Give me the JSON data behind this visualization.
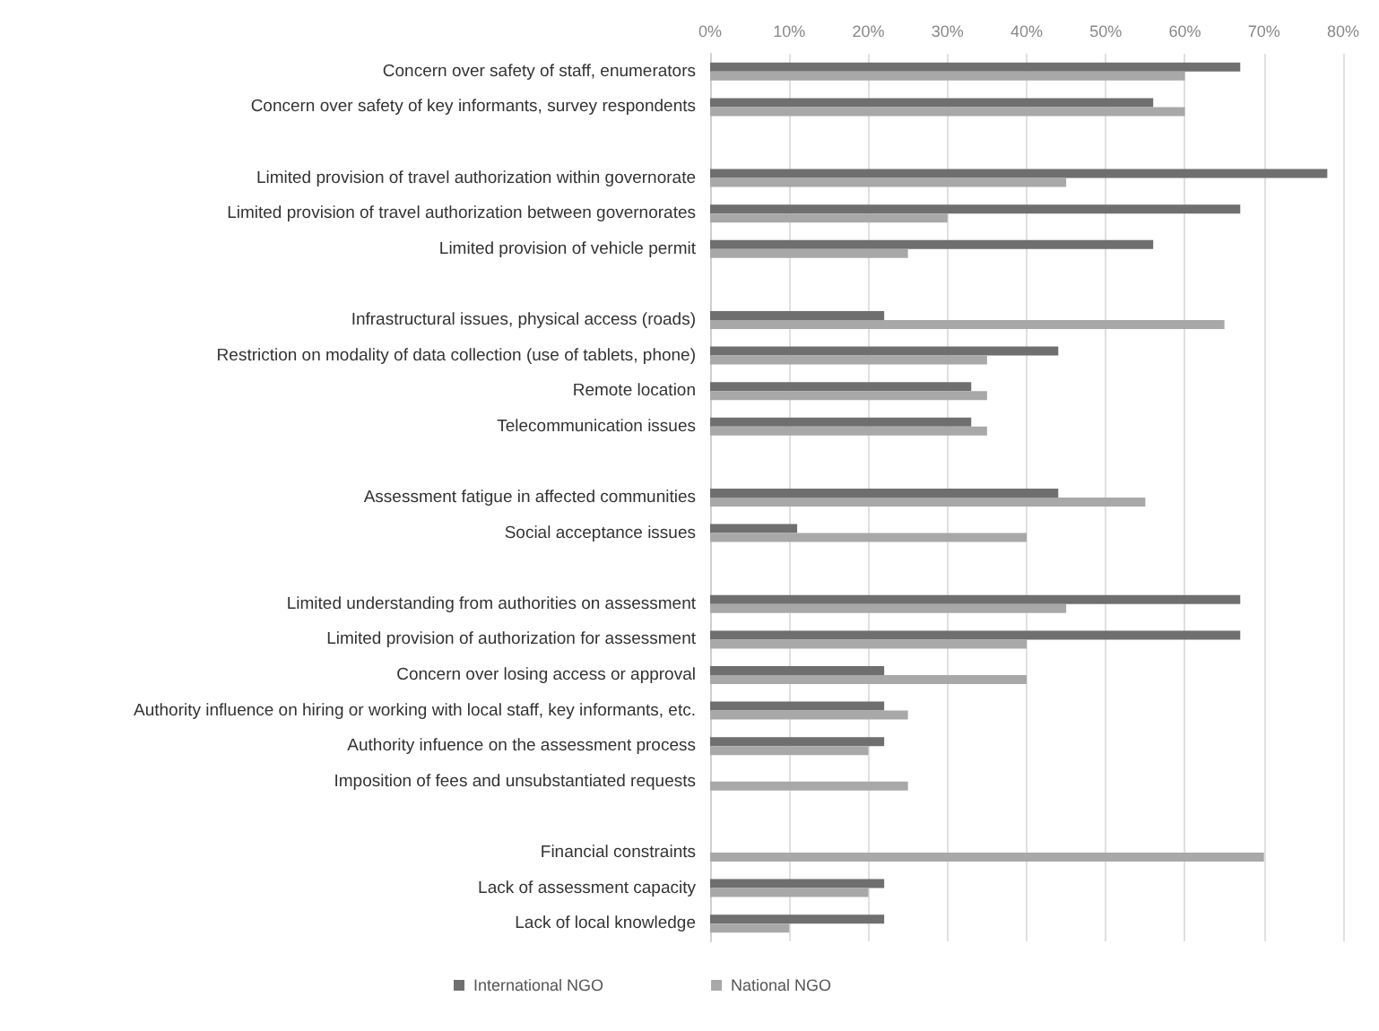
{
  "chart_data": {
    "type": "bar",
    "orientation": "horizontal",
    "categories": [
      "Concern over safety of staff, enumerators",
      "Concern over safety of key informants, survey respondents",
      null,
      "Limited provision of travel authorization within governorate",
      "Limited provision of travel authorization between governorates",
      "Limited provision of vehicle permit",
      null,
      "Infrastructural issues, physical access (roads)",
      "Restriction on modality of data collection (use of tablets, phone)",
      "Remote location",
      "Telecommunication issues",
      null,
      "Assessment fatigue in affected communities",
      "Social acceptance issues",
      null,
      "Limited understanding from authorities on assessment",
      "Limited provision of authorization for assessment",
      "Concern over losing access or approval",
      "Authority influence on hiring or working with local staff, key informants, etc.",
      "Authority infuence on the assessment process",
      "Imposition of fees and unsubstantiated requests",
      null,
      "Financial constraints",
      "Lack of assessment capacity",
      "Lack of local knowledge"
    ],
    "series": [
      {
        "name": "International NGO",
        "color": "#6f6f6f",
        "values": [
          67,
          56,
          null,
          78,
          67,
          56,
          null,
          22,
          44,
          33,
          33,
          null,
          44,
          11,
          null,
          67,
          67,
          22,
          22,
          22,
          0,
          null,
          0,
          22,
          22
        ]
      },
      {
        "name": "National NGO",
        "color": "#a8a8a8",
        "values": [
          60,
          60,
          null,
          45,
          30,
          25,
          null,
          65,
          35,
          35,
          35,
          null,
          55,
          40,
          null,
          45,
          40,
          40,
          25,
          20,
          25,
          null,
          70,
          20,
          10
        ]
      }
    ],
    "xlim": [
      0,
      80
    ],
    "xticks": [
      {
        "value": 0,
        "label": "0%"
      },
      {
        "value": 10,
        "label": "10%"
      },
      {
        "value": 20,
        "label": "20%"
      },
      {
        "value": 30,
        "label": "30%"
      },
      {
        "value": 40,
        "label": "40%"
      },
      {
        "value": 50,
        "label": "50%"
      },
      {
        "value": 60,
        "label": "60%"
      },
      {
        "value": 70,
        "label": "70%"
      },
      {
        "value": 80,
        "label": "80%"
      }
    ],
    "grid": "x",
    "legend": "bottom"
  }
}
